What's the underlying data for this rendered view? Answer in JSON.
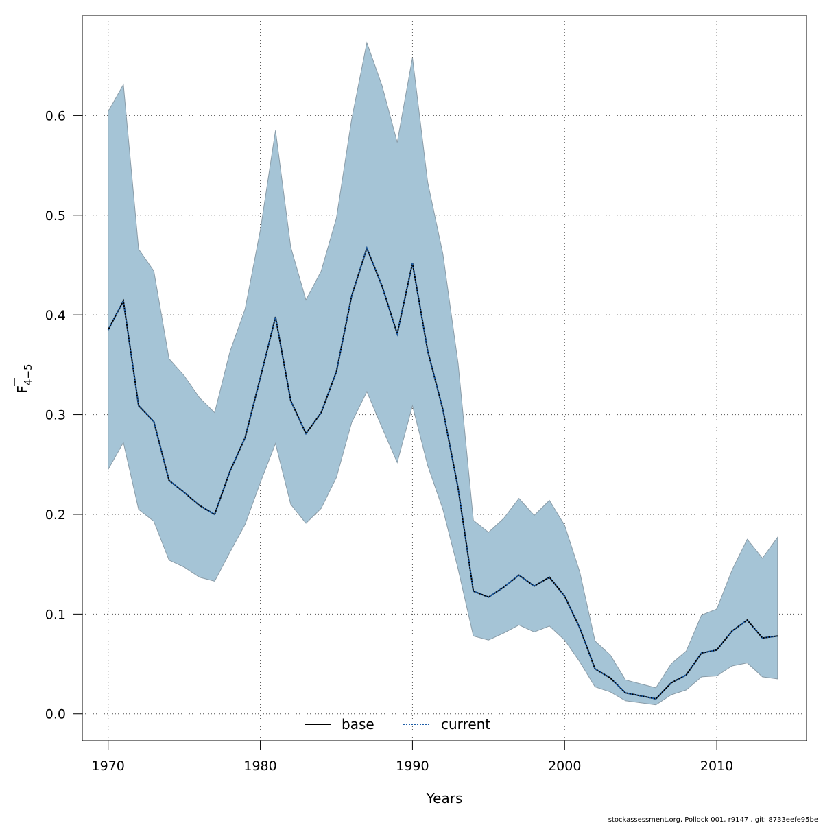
{
  "chart_data": {
    "type": "line",
    "xlabel": "Years",
    "ylabel_main": "F",
    "ylabel_sub": "4−5",
    "xlim": [
      1968.3,
      2015.9
    ],
    "ylim": [
      -0.027,
      0.7
    ],
    "x_ticks": [
      1970,
      1980,
      1990,
      2000,
      2010
    ],
    "y_ticks": [
      0.0,
      0.1,
      0.2,
      0.3,
      0.4,
      0.5,
      0.6
    ],
    "y_tick_labels": [
      "0.0",
      "0.1",
      "0.2",
      "0.3",
      "0.4",
      "0.5",
      "0.6"
    ],
    "grid": true,
    "legend_placement": "bottom-center",
    "x": [
      1970,
      1971,
      1972,
      1973,
      1974,
      1975,
      1976,
      1977,
      1978,
      1979,
      1980,
      1981,
      1982,
      1983,
      1984,
      1985,
      1986,
      1987,
      1988,
      1989,
      1990,
      1991,
      1992,
      1993,
      1994,
      1995,
      1996,
      1997,
      1998,
      1999,
      2000,
      2001,
      2002,
      2003,
      2004,
      2005,
      2006,
      2007,
      2008,
      2009,
      2010,
      2011,
      2012,
      2013,
      2014
    ],
    "band": {
      "upper": [
        0.604,
        0.631,
        0.466,
        0.444,
        0.356,
        0.339,
        0.317,
        0.302,
        0.363,
        0.406,
        0.485,
        0.585,
        0.468,
        0.415,
        0.444,
        0.497,
        0.596,
        0.673,
        0.63,
        0.573,
        0.658,
        0.533,
        0.461,
        0.351,
        0.194,
        0.182,
        0.196,
        0.216,
        0.199,
        0.214,
        0.189,
        0.142,
        0.073,
        0.059,
        0.034,
        0.03,
        0.026,
        0.05,
        0.063,
        0.099,
        0.105,
        0.144,
        0.175,
        0.156,
        0.177
      ],
      "lower": [
        0.245,
        0.272,
        0.205,
        0.193,
        0.154,
        0.147,
        0.137,
        0.133,
        0.162,
        0.19,
        0.232,
        0.271,
        0.21,
        0.191,
        0.206,
        0.237,
        0.292,
        0.323,
        0.287,
        0.252,
        0.309,
        0.249,
        0.205,
        0.145,
        0.078,
        0.074,
        0.081,
        0.089,
        0.082,
        0.088,
        0.074,
        0.052,
        0.027,
        0.022,
        0.013,
        0.011,
        0.009,
        0.019,
        0.024,
        0.037,
        0.038,
        0.048,
        0.051,
        0.037,
        0.035
      ]
    },
    "series": [
      {
        "name": "base",
        "style": "solid",
        "color": "#000000",
        "values": [
          0.385,
          0.414,
          0.309,
          0.293,
          0.234,
          0.222,
          0.209,
          0.2,
          0.243,
          0.277,
          0.337,
          0.398,
          0.314,
          0.281,
          0.302,
          0.343,
          0.419,
          0.467,
          0.429,
          0.381,
          0.452,
          0.364,
          0.305,
          0.226,
          0.123,
          0.117,
          0.127,
          0.139,
          0.128,
          0.137,
          0.118,
          0.086,
          0.045,
          0.036,
          0.021,
          0.018,
          0.015,
          0.031,
          0.039,
          0.061,
          0.064,
          0.083,
          0.094,
          0.076,
          0.078
        ]
      },
      {
        "name": "current",
        "style": "dotted",
        "color": "#1f5fa8",
        "values": [
          0.385,
          0.414,
          0.309,
          0.293,
          0.234,
          0.222,
          0.209,
          0.2,
          0.243,
          0.277,
          0.337,
          0.398,
          0.314,
          0.281,
          0.302,
          0.343,
          0.419,
          0.467,
          0.429,
          0.381,
          0.452,
          0.364,
          0.305,
          0.226,
          0.123,
          0.117,
          0.127,
          0.139,
          0.128,
          0.137,
          0.118,
          0.086,
          0.045,
          0.036,
          0.021,
          0.018,
          0.015,
          0.031,
          0.039,
          0.061,
          0.064,
          0.083,
          0.094,
          0.076,
          0.078
        ]
      }
    ],
    "colors": {
      "band_fill": "#a5c4d6",
      "band_edge": "#8a9ca8",
      "grid": "#555555"
    }
  },
  "footer": "stockassessment.org, Pollock  001, r9147 , git: 8733eefe95be"
}
